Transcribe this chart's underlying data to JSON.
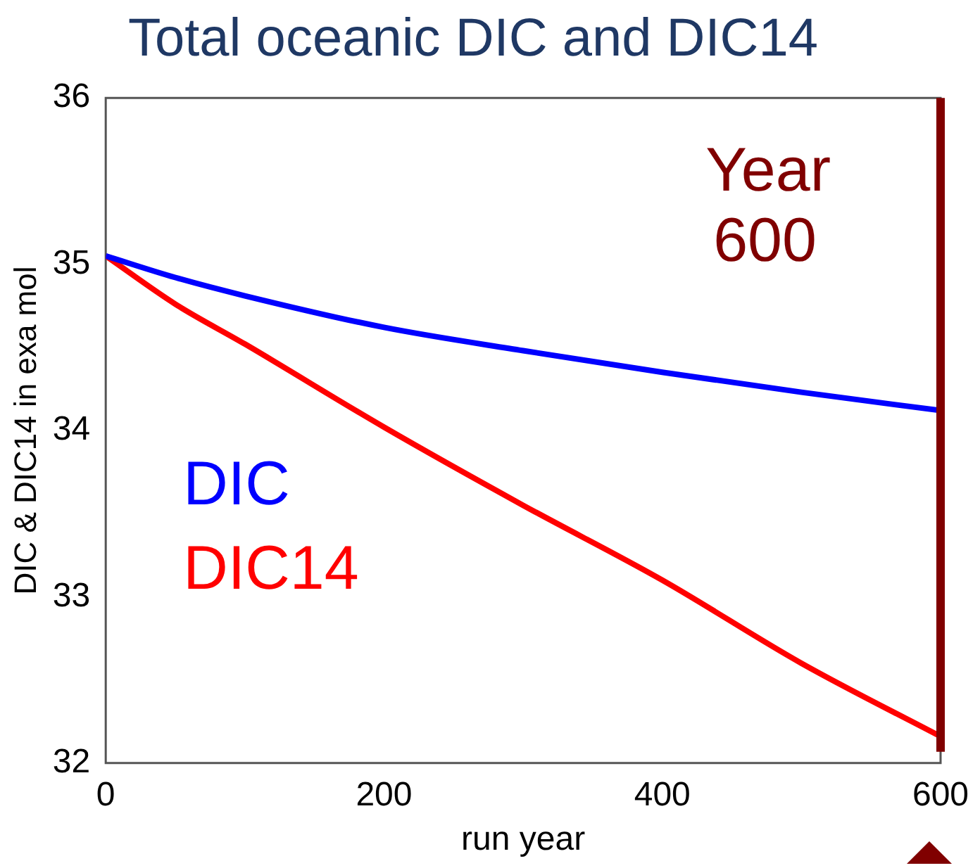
{
  "chart_data": {
    "type": "line",
    "title": "Total oceanic DIC and DIC14",
    "xlabel": "run year",
    "ylabel": "DIC & DIC14 in exa mol",
    "x": [
      0,
      50,
      100,
      200,
      300,
      400,
      500,
      600
    ],
    "series": [
      {
        "name": "DIC",
        "color": "#0000ff",
        "values": [
          35.05,
          34.92,
          34.81,
          34.62,
          34.48,
          34.35,
          34.23,
          34.12
        ]
      },
      {
        "name": "DIC14",
        "color": "#ff0000",
        "values": [
          35.05,
          34.76,
          34.52,
          34.02,
          33.55,
          33.1,
          32.6,
          32.16
        ]
      }
    ],
    "xlim": [
      0,
      600
    ],
    "xticks": [
      0,
      200,
      400,
      600
    ],
    "ylim": [
      32,
      36
    ],
    "yticks": [
      32,
      33,
      34,
      35,
      36
    ],
    "grid": false,
    "legend": false,
    "marker": "none",
    "line_style": "solid",
    "ref_lines": [
      {
        "axis": "x",
        "value": 600,
        "label": "Year 600",
        "color": "#800000"
      }
    ]
  }
}
